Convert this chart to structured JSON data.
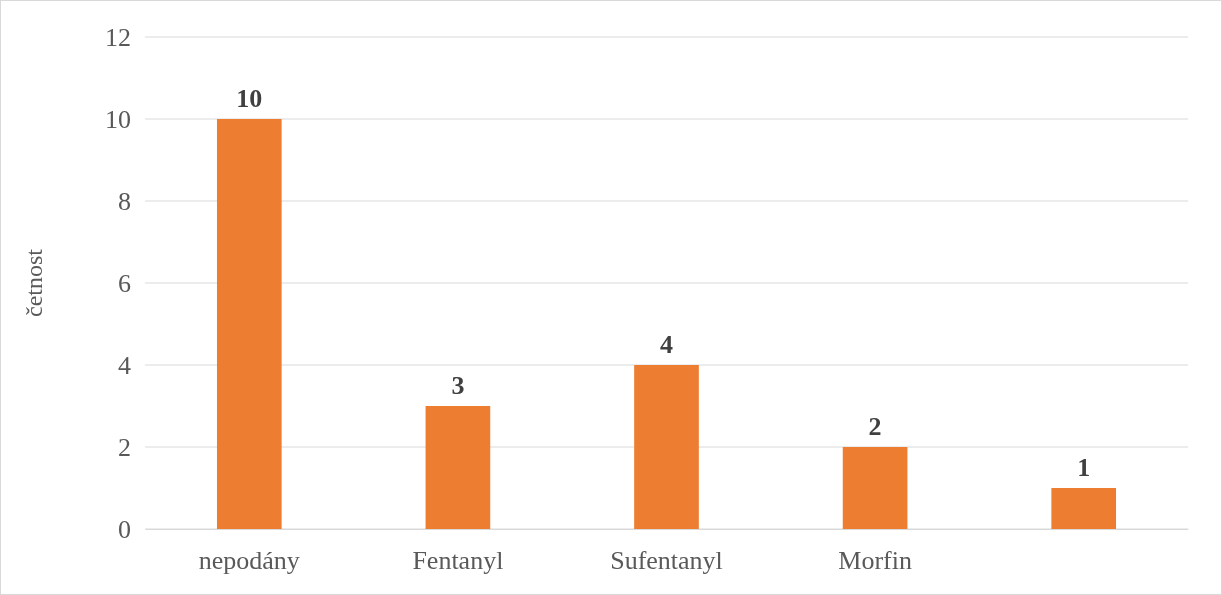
{
  "chart_data": {
    "type": "bar",
    "ylabel": "četnost",
    "categories": [
      "nepodány",
      "Fentanyl",
      "Sufentanyl",
      "Morfin",
      null
    ],
    "values": [
      10,
      3,
      4,
      2,
      1
    ],
    "color": "#ed7d31",
    "ylim": [
      0,
      12
    ],
    "yticks": [
      0,
      2,
      4,
      6,
      8,
      10,
      12
    ],
    "grid": "y",
    "data_labels": true
  }
}
